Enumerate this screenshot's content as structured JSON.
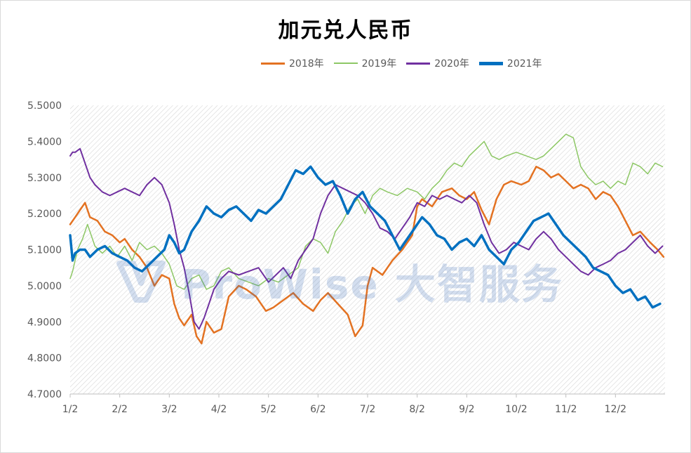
{
  "chart_data": {
    "type": "line",
    "title": "加元兑人民币",
    "xlabel": "",
    "ylabel": "",
    "ylim": [
      4.7,
      5.5
    ],
    "yticks": [
      "5.5000",
      "5.4000",
      "5.3000",
      "5.2000",
      "5.1000",
      "5.0000",
      "4.9000",
      "4.8000",
      "4.7000"
    ],
    "xlim": [
      1,
      13
    ],
    "xticks": [
      {
        "x": 1,
        "label": "1/2"
      },
      {
        "x": 2,
        "label": "2/2"
      },
      {
        "x": 3,
        "label": "3/2"
      },
      {
        "x": 4,
        "label": "4/2"
      },
      {
        "x": 5,
        "label": "5/2"
      },
      {
        "x": 6,
        "label": "6/2"
      },
      {
        "x": 7,
        "label": "7/2"
      },
      {
        "x": 8,
        "label": "8/2"
      },
      {
        "x": 9,
        "label": "9/2"
      },
      {
        "x": 10,
        "label": "10/2"
      },
      {
        "x": 11,
        "label": "11/2"
      },
      {
        "x": 12,
        "label": "12/2"
      }
    ],
    "grid": "diagonal-hatch",
    "legend_position": "top",
    "series": [
      {
        "name": "2018年",
        "color": "#E37222",
        "width": 2.5,
        "x": [
          1.0,
          1.1,
          1.2,
          1.3,
          1.4,
          1.55,
          1.7,
          1.85,
          2.0,
          2.1,
          2.25,
          2.4,
          2.55,
          2.7,
          2.85,
          3.0,
          3.1,
          3.2,
          3.3,
          3.45,
          3.55,
          3.65,
          3.75,
          3.9,
          4.05,
          4.2,
          4.4,
          4.55,
          4.75,
          4.95,
          5.1,
          5.3,
          5.5,
          5.7,
          5.9,
          6.05,
          6.2,
          6.4,
          6.6,
          6.75,
          6.9,
          7.0,
          7.1,
          7.3,
          7.5,
          7.7,
          7.9,
          8.0,
          8.1,
          8.3,
          8.5,
          8.7,
          8.85,
          9.0,
          9.15,
          9.3,
          9.45,
          9.6,
          9.75,
          9.9,
          10.1,
          10.25,
          10.4,
          10.55,
          10.7,
          10.85,
          11.0,
          11.15,
          11.3,
          11.45,
          11.6,
          11.75,
          11.9,
          12.05,
          12.2,
          12.35,
          12.5,
          12.7,
          12.85,
          12.97
        ],
        "y": [
          5.17,
          5.19,
          5.21,
          5.23,
          5.19,
          5.18,
          5.15,
          5.14,
          5.12,
          5.13,
          5.1,
          5.08,
          5.05,
          5.0,
          5.03,
          5.02,
          4.95,
          4.91,
          4.89,
          4.92,
          4.86,
          4.84,
          4.9,
          4.87,
          4.88,
          4.97,
          5.0,
          4.99,
          4.97,
          4.93,
          4.94,
          4.96,
          4.98,
          4.95,
          4.93,
          4.96,
          4.98,
          4.95,
          4.92,
          4.86,
          4.89,
          5.0,
          5.05,
          5.03,
          5.07,
          5.1,
          5.14,
          5.22,
          5.24,
          5.22,
          5.26,
          5.27,
          5.25,
          5.24,
          5.26,
          5.21,
          5.17,
          5.24,
          5.28,
          5.29,
          5.28,
          5.29,
          5.33,
          5.32,
          5.3,
          5.31,
          5.29,
          5.27,
          5.28,
          5.27,
          5.24,
          5.26,
          5.25,
          5.22,
          5.18,
          5.14,
          5.15,
          5.12,
          5.1,
          5.08
        ]
      },
      {
        "name": "2019年",
        "color": "#8DC765",
        "width": 1.5,
        "x": [
          1.0,
          1.05,
          1.15,
          1.25,
          1.35,
          1.5,
          1.65,
          1.8,
          1.95,
          2.1,
          2.25,
          2.4,
          2.55,
          2.7,
          2.85,
          3.0,
          3.15,
          3.3,
          3.45,
          3.6,
          3.75,
          3.9,
          4.05,
          4.2,
          4.4,
          4.6,
          4.8,
          5.0,
          5.2,
          5.4,
          5.6,
          5.75,
          5.9,
          6.05,
          6.2,
          6.35,
          6.5,
          6.65,
          6.8,
          6.95,
          7.1,
          7.25,
          7.4,
          7.6,
          7.8,
          8.0,
          8.15,
          8.3,
          8.45,
          8.6,
          8.75,
          8.9,
          9.05,
          9.2,
          9.35,
          9.5,
          9.65,
          9.8,
          10.0,
          10.2,
          10.4,
          10.55,
          10.7,
          10.85,
          11.0,
          11.15,
          11.3,
          11.45,
          11.6,
          11.75,
          11.9,
          12.05,
          12.2,
          12.35,
          12.5,
          12.65,
          12.8,
          12.95
        ],
        "y": [
          5.02,
          5.04,
          5.1,
          5.13,
          5.17,
          5.11,
          5.09,
          5.11,
          5.08,
          5.11,
          5.07,
          5.12,
          5.1,
          5.11,
          5.09,
          5.06,
          5.0,
          4.99,
          5.02,
          5.03,
          4.99,
          5.0,
          5.04,
          5.05,
          5.02,
          5.01,
          5.0,
          5.02,
          5.01,
          5.03,
          5.05,
          5.11,
          5.13,
          5.12,
          5.09,
          5.15,
          5.18,
          5.22,
          5.24,
          5.2,
          5.25,
          5.27,
          5.26,
          5.25,
          5.27,
          5.26,
          5.24,
          5.27,
          5.29,
          5.32,
          5.34,
          5.33,
          5.36,
          5.38,
          5.4,
          5.36,
          5.35,
          5.36,
          5.37,
          5.36,
          5.35,
          5.36,
          5.38,
          5.4,
          5.42,
          5.41,
          5.33,
          5.3,
          5.28,
          5.29,
          5.27,
          5.29,
          5.28,
          5.34,
          5.33,
          5.31,
          5.34,
          5.33
        ]
      },
      {
        "name": "2020年",
        "color": "#7030A0",
        "width": 2,
        "x": [
          1.0,
          1.05,
          1.1,
          1.2,
          1.3,
          1.4,
          1.5,
          1.65,
          1.8,
          1.95,
          2.1,
          2.25,
          2.4,
          2.55,
          2.7,
          2.85,
          3.0,
          3.1,
          3.2,
          3.3,
          3.4,
          3.5,
          3.6,
          3.7,
          3.8,
          3.9,
          4.05,
          4.2,
          4.4,
          4.6,
          4.8,
          5.0,
          5.15,
          5.3,
          5.45,
          5.6,
          5.75,
          5.9,
          6.05,
          6.2,
          6.35,
          6.5,
          6.65,
          6.8,
          6.95,
          7.1,
          7.25,
          7.4,
          7.55,
          7.7,
          7.85,
          8.0,
          8.15,
          8.3,
          8.45,
          8.6,
          8.75,
          8.9,
          9.05,
          9.2,
          9.35,
          9.5,
          9.65,
          9.8,
          9.95,
          10.1,
          10.25,
          10.4,
          10.55,
          10.7,
          10.85,
          11.0,
          11.15,
          11.3,
          11.45,
          11.6,
          11.75,
          11.9,
          12.05,
          12.2,
          12.35,
          12.5,
          12.65,
          12.8,
          12.95
        ],
        "y": [
          5.36,
          5.37,
          5.37,
          5.38,
          5.34,
          5.3,
          5.28,
          5.26,
          5.25,
          5.26,
          5.27,
          5.26,
          5.25,
          5.28,
          5.3,
          5.28,
          5.23,
          5.17,
          5.1,
          5.05,
          4.98,
          4.9,
          4.88,
          4.91,
          4.95,
          4.99,
          5.02,
          5.04,
          5.03,
          5.04,
          5.05,
          5.01,
          5.03,
          5.05,
          5.02,
          5.07,
          5.1,
          5.13,
          5.2,
          5.25,
          5.28,
          5.27,
          5.26,
          5.25,
          5.23,
          5.2,
          5.16,
          5.15,
          5.13,
          5.16,
          5.19,
          5.23,
          5.22,
          5.25,
          5.24,
          5.25,
          5.24,
          5.23,
          5.25,
          5.23,
          5.17,
          5.12,
          5.09,
          5.1,
          5.12,
          5.11,
          5.1,
          5.13,
          5.15,
          5.13,
          5.1,
          5.08,
          5.06,
          5.04,
          5.03,
          5.05,
          5.06,
          5.07,
          5.09,
          5.1,
          5.12,
          5.14,
          5.11,
          5.09,
          5.11
        ]
      },
      {
        "name": "2021年",
        "color": "#0070C0",
        "width": 3.5,
        "x": [
          1.0,
          1.05,
          1.1,
          1.2,
          1.3,
          1.4,
          1.55,
          1.7,
          1.85,
          2.0,
          2.15,
          2.3,
          2.45,
          2.6,
          2.75,
          2.9,
          3.0,
          3.1,
          3.2,
          3.3,
          3.45,
          3.6,
          3.75,
          3.9,
          4.05,
          4.2,
          4.35,
          4.5,
          4.65,
          4.8,
          4.95,
          5.1,
          5.25,
          5.4,
          5.55,
          5.7,
          5.85,
          6.0,
          6.15,
          6.3,
          6.45,
          6.6,
          6.75,
          6.9,
          7.05,
          7.2,
          7.35,
          7.5,
          7.65,
          7.8,
          7.95,
          8.1,
          8.25,
          8.4,
          8.55,
          8.7,
          8.85,
          9.0,
          9.15,
          9.3,
          9.45,
          9.6,
          9.75,
          9.9,
          10.05,
          10.2,
          10.35,
          10.5,
          10.65,
          10.8,
          10.95,
          11.1,
          11.25,
          11.4,
          11.55,
          11.7,
          11.85,
          12.0,
          12.15,
          12.3,
          12.45,
          12.6,
          12.75,
          12.9
        ],
        "y": [
          5.14,
          5.07,
          5.09,
          5.1,
          5.1,
          5.08,
          5.1,
          5.11,
          5.09,
          5.08,
          5.07,
          5.05,
          5.04,
          5.06,
          5.08,
          5.1,
          5.14,
          5.12,
          5.09,
          5.1,
          5.15,
          5.18,
          5.22,
          5.2,
          5.19,
          5.21,
          5.22,
          5.2,
          5.18,
          5.21,
          5.2,
          5.22,
          5.24,
          5.28,
          5.32,
          5.31,
          5.33,
          5.3,
          5.28,
          5.29,
          5.25,
          5.2,
          5.24,
          5.26,
          5.22,
          5.2,
          5.18,
          5.14,
          5.1,
          5.13,
          5.16,
          5.19,
          5.17,
          5.14,
          5.13,
          5.1,
          5.12,
          5.13,
          5.11,
          5.14,
          5.1,
          5.08,
          5.06,
          5.1,
          5.12,
          5.15,
          5.18,
          5.19,
          5.2,
          5.17,
          5.14,
          5.12,
          5.1,
          5.08,
          5.05,
          5.04,
          5.03,
          5.0,
          4.98,
          4.99,
          4.96,
          4.97,
          4.94,
          4.95
        ]
      }
    ]
  },
  "watermark": {
    "text": "ProWise 大智服务"
  }
}
